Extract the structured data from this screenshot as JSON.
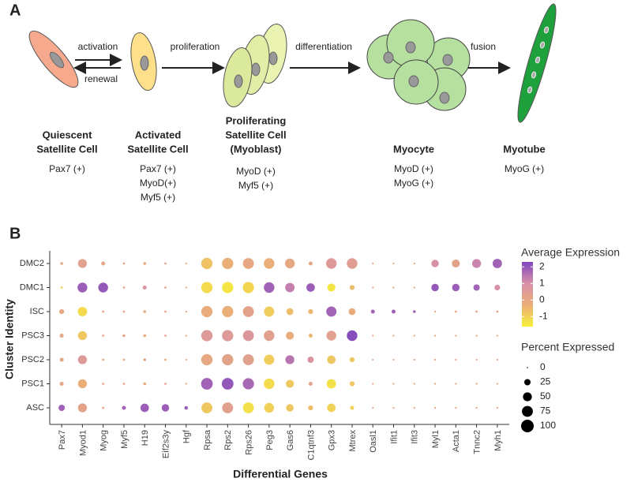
{
  "diagram": {
    "panel_label": "A",
    "arrows": [
      "activation",
      "renewal",
      "proliferation",
      "differentiation",
      "fusion"
    ],
    "stages": [
      {
        "name": [
          "Quiescent",
          "Satellite Cell"
        ],
        "markers": [
          "Pax7 (+)"
        ]
      },
      {
        "name": [
          "Activated",
          "Satellite Cell"
        ],
        "markers": [
          "Pax7 (+)",
          "MyoD(+)",
          "Myf5 (+)"
        ]
      },
      {
        "name": [
          "Proliferating",
          "Satellite Cell",
          "(Myoblast)"
        ],
        "markers": [
          "MyoD (+)",
          "Myf5 (+)"
        ]
      },
      {
        "name": [
          "Myocyte"
        ],
        "markers": [
          "MyoD (+)",
          "MyoG (+)"
        ]
      },
      {
        "name": [
          "Myotube"
        ],
        "markers": [
          "MyoG (+)"
        ]
      }
    ]
  },
  "chart_data": {
    "type": "dot",
    "panel_label": "B",
    "xlabel": "Differential Genes",
    "ylabel": "Cluster Identity",
    "categories": [
      "Pax7",
      "Myod1",
      "Myog",
      "Myf5",
      "H19",
      "Eif2s3y",
      "Hgf",
      "Rpsa",
      "Rps2",
      "Rps26",
      "Peg3",
      "Gas6",
      "C1qtnf3",
      "Gpx3",
      "Mtrex",
      "Oasl1",
      "Ifit1",
      "Ifit3",
      "Myl1",
      "Acta1",
      "Tnnc2",
      "Myh1"
    ],
    "series": [
      {
        "name": "DMC2",
        "values": [
          0,
          0.3,
          0,
          0,
          0,
          0,
          0,
          -0.7,
          -0.3,
          0,
          -0.3,
          0,
          0,
          0.6,
          0.4,
          0,
          0,
          0,
          0.9,
          0.2,
          1.2,
          1.8
        ],
        "sizes": [
          5,
          50,
          10,
          3,
          5,
          3,
          2,
          80,
          80,
          75,
          70,
          60,
          10,
          70,
          70,
          2,
          2,
          2,
          35,
          40,
          50,
          55
        ]
      },
      {
        "name": "DMC1",
        "values": [
          -1,
          1.9,
          2,
          0,
          0.8,
          0,
          0,
          -1.2,
          -1.4,
          -1.1,
          1.8,
          1.3,
          1.9,
          -1.4,
          -0.6,
          0,
          0,
          0,
          2,
          1.9,
          1.8,
          1
        ],
        "sizes": [
          3,
          60,
          60,
          3,
          10,
          3,
          2,
          80,
          80,
          80,
          70,
          55,
          45,
          40,
          15,
          2,
          2,
          2,
          35,
          35,
          25,
          20
        ]
      },
      {
        "name": "ISC",
        "values": [
          0,
          -1.2,
          0,
          0,
          0,
          0,
          0,
          -0.2,
          -0.3,
          0.2,
          -0.9,
          -0.6,
          -0.5,
          1.8,
          -0.2,
          1.8,
          1.8,
          1.8,
          0,
          0,
          0,
          0
        ],
        "sizes": [
          15,
          55,
          3,
          3,
          5,
          3,
          2,
          80,
          80,
          75,
          65,
          30,
          15,
          65,
          30,
          10,
          10,
          5,
          2,
          3,
          3,
          3
        ]
      },
      {
        "name": "PSC3",
        "values": [
          0,
          -0.8,
          0,
          0,
          0,
          0,
          0,
          0.6,
          0.6,
          0.7,
          0.3,
          -0.2,
          -0.5,
          0.3,
          2.2,
          0,
          0,
          0,
          0,
          0,
          0,
          0
        ],
        "sizes": [
          10,
          50,
          3,
          5,
          5,
          3,
          2,
          80,
          80,
          75,
          70,
          40,
          10,
          60,
          70,
          2,
          2,
          2,
          2,
          2,
          2,
          2
        ]
      },
      {
        "name": "PSC2",
        "values": [
          0,
          0.6,
          0,
          0,
          0,
          0,
          0,
          0,
          0.2,
          0.3,
          -0.9,
          1.5,
          0.8,
          -0.8,
          -0.8,
          0,
          0,
          0,
          0,
          0,
          0,
          0
        ],
        "sizes": [
          10,
          50,
          3,
          3,
          5,
          3,
          2,
          80,
          80,
          75,
          65,
          50,
          25,
          45,
          15,
          2,
          2,
          2,
          2,
          2,
          2,
          2
        ]
      },
      {
        "name": "PSC1",
        "values": [
          0,
          -0.3,
          0,
          0,
          0,
          0,
          0,
          1.8,
          2,
          1.7,
          -1.2,
          -0.8,
          0.2,
          -1.3,
          -0.8,
          0,
          0,
          0,
          0,
          0,
          0,
          0
        ],
        "sizes": [
          10,
          50,
          3,
          3,
          5,
          3,
          2,
          85,
          85,
          80,
          70,
          40,
          10,
          55,
          15,
          2,
          2,
          2,
          2,
          2,
          2,
          2
        ]
      },
      {
        "name": "ASC",
        "values": [
          1.8,
          0.2,
          0,
          1.8,
          1.9,
          1.9,
          1.9,
          -0.8,
          0.3,
          -1.3,
          -1,
          -0.8,
          -0.6,
          -1,
          -1,
          0,
          0,
          0,
          0,
          0,
          0,
          0
        ],
        "sizes": [
          25,
          50,
          3,
          10,
          45,
          35,
          8,
          75,
          75,
          75,
          60,
          35,
          15,
          45,
          10,
          2,
          2,
          2,
          2,
          2,
          2,
          2
        ]
      }
    ],
    "color_title": "Average Expression",
    "colorlim": [
      -1.6,
      2.3
    ],
    "colorticks": [
      2,
      1,
      0,
      -1
    ],
    "colors": [
      "#f7ef3a",
      "#eaae78",
      "#d890a8",
      "#7f47bf"
    ],
    "size_title": "Percent Expressed",
    "sizelim": [
      0,
      100
    ],
    "sizeticks": [
      0,
      25,
      50,
      75,
      100
    ]
  }
}
